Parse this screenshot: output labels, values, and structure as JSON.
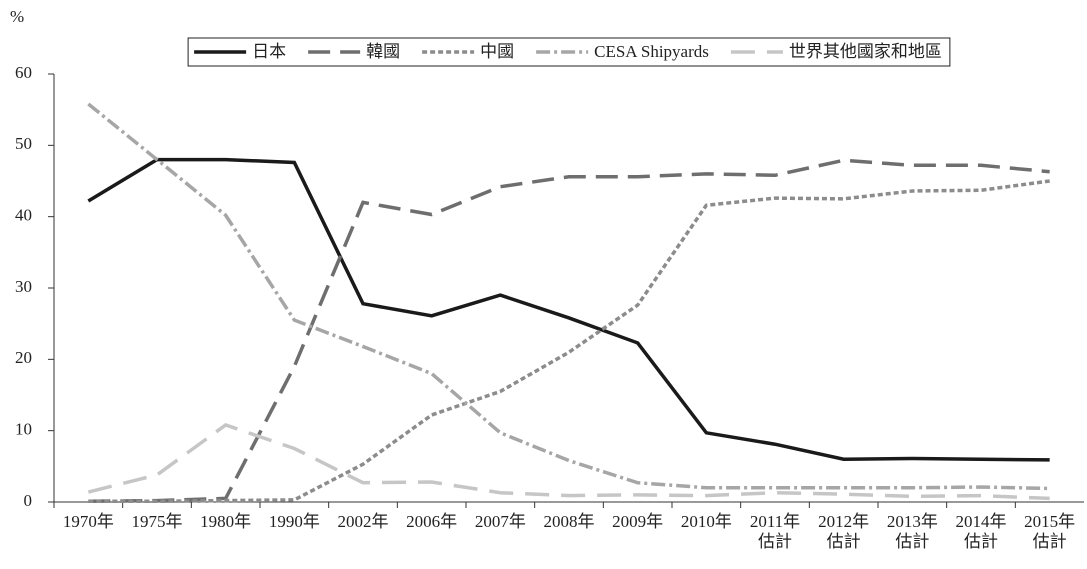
{
  "chart_data": {
    "type": "line",
    "y_label": "%",
    "categories": [
      "1970年",
      "1975年",
      "1980年",
      "1990年",
      "2002年",
      "2006年",
      "2007年",
      "2008年",
      "2009年",
      "2010年",
      "2011年\n估計",
      "2012年\n估計",
      "2013年\n估計",
      "2014年\n估計",
      "2015年\n估計"
    ],
    "series": [
      {
        "name": "日本",
        "color": "#1a1a1a",
        "dash": "solid",
        "values": [
          42.2,
          48,
          48,
          47.6,
          27.8,
          26.1,
          29,
          25.8,
          22.3,
          9.7,
          8.1,
          6,
          6.1,
          6,
          5.9
        ]
      },
      {
        "name": "韓國",
        "color": "#6e6e6e",
        "dash": "long",
        "values": [
          0.1,
          0.2,
          0.5,
          19,
          42,
          40.3,
          44.2,
          45.6,
          45.6,
          46,
          45.8,
          47.9,
          47.2,
          47.2,
          46.3
        ]
      },
      {
        "name": "中國",
        "color": "#8c8c8c",
        "dash": "short",
        "values": [
          0.1,
          0.1,
          0.2,
          0.3,
          5.3,
          12.2,
          15.5,
          21,
          27.6,
          41.6,
          42.6,
          42.5,
          43.6,
          43.7,
          45
        ]
      },
      {
        "name": "CESA Shipyards",
        "color": "#a6a6a6",
        "dash": "dashdot",
        "values": [
          55.8,
          48,
          40.2,
          25.5,
          21.8,
          18,
          9.7,
          5.8,
          2.7,
          2,
          2,
          2,
          2,
          2.1,
          1.9
        ]
      },
      {
        "name": "世界其他國家和地區",
        "color": "#c6c6c6",
        "dash": "longgap",
        "values": [
          1.4,
          3.8,
          10.8,
          7.5,
          2.7,
          2.8,
          1.3,
          0.9,
          1,
          0.9,
          1.3,
          1.1,
          0.8,
          0.9,
          0.5
        ]
      }
    ],
    "ylim": [
      0,
      60
    ],
    "yticks": [
      0,
      10,
      20,
      30,
      40,
      50,
      60
    ],
    "grid": false,
    "legend": "top"
  }
}
